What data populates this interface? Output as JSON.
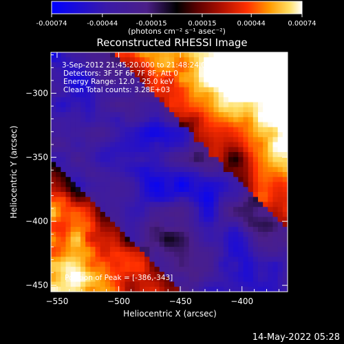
{
  "chart_data": {
    "type": "heatmap",
    "title": "Reconstructed RHESSI Image",
    "xlabel": "Heliocentric X (arcsec)",
    "ylabel": "Heliocentric Y (arcsec)",
    "xlim": [
      -555,
      -363
    ],
    "ylim": [
      -455,
      -268
    ],
    "xticks": [
      -550,
      -500,
      -450,
      -400
    ],
    "yticks": [
      -450,
      -400,
      -350,
      -300
    ],
    "colorbar": {
      "label": "(photons cm⁻² s⁻¹ asec⁻²)",
      "ticks": [
        "-0.00074",
        "-0.00044",
        "-0.00015",
        "0.00015",
        "0.00044",
        "0.00074"
      ],
      "range": [
        -0.00074,
        0.00074
      ],
      "colors": [
        "#0000ff",
        "#3a1aa8",
        "#4b1f88",
        "#000000",
        "#5a0000",
        "#b01000",
        "#ff3000",
        "#ff9a00",
        "#ffe066",
        "#ffffff"
      ]
    },
    "annotations": [
      "3-Sep-2012 21:45:20.000 to 21:48:24.000",
      "Detectors: 3F 5F 6F 7F 8F, Att 0",
      "Energy Range: 12.0 - 25.0 keV",
      "Clean     Total counts: 3.28E+03"
    ],
    "peak_label": "Position of Peak = [-386,-343]",
    "peak": [
      -386,
      -343
    ]
  },
  "footer": {
    "timestamp": "14-May-2022 05:28"
  }
}
